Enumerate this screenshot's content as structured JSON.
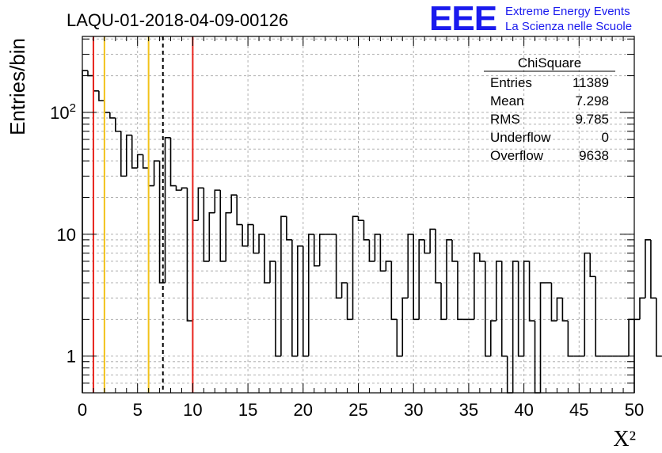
{
  "title": "LAQU-01-2018-04-09-00126",
  "logo": {
    "mark": "EEE",
    "line1": "Extreme Energy Events",
    "line2": "La Scienza nelle Scuole"
  },
  "stats": {
    "name": "ChiSquare",
    "rows": [
      {
        "label": "Entries",
        "value": "11389"
      },
      {
        "label": "Mean",
        "value": "7.298"
      },
      {
        "label": "RMS",
        "value": "9.785"
      },
      {
        "label": "Underflow",
        "value": "0"
      },
      {
        "label": "Overflow",
        "value": "9638"
      }
    ]
  },
  "colors": {
    "red_line": "#e8231c",
    "yellow_line": "#f2c21a",
    "dashed_line": "#000000",
    "logo": "#1a1aee"
  },
  "chart_data": {
    "type": "histogram",
    "title": "LAQU-01-2018-04-09-00126",
    "xlabel": "X²",
    "ylabel": "Entries/bin",
    "xlim": [
      0,
      50
    ],
    "ylim": [
      0.5,
      420
    ],
    "y_scale": "log",
    "grid": true,
    "bin_width": 0.5,
    "x_ticks": [
      0,
      5,
      10,
      15,
      20,
      25,
      30,
      35,
      40,
      45,
      50
    ],
    "x_tick_labels": [
      "0",
      "5",
      "10",
      "15",
      "20",
      "25",
      "30",
      "35",
      "40",
      "45",
      "50"
    ],
    "y_ticks": [
      1,
      10,
      100
    ],
    "y_tick_labels": [
      "1",
      "10",
      "10²"
    ],
    "values": [
      220,
      200,
      150,
      125,
      100,
      90,
      70,
      30,
      65,
      35,
      45,
      35,
      25,
      40,
      4,
      62,
      25,
      23,
      24,
      1.95,
      13,
      24,
      6,
      15,
      23,
      6,
      15,
      21,
      12,
      8,
      12,
      7,
      10,
      4,
      6,
      1,
      14,
      9,
      1,
      8,
      1,
      10,
      5.5,
      10,
      10,
      10,
      3,
      4,
      2,
      14,
      13,
      9,
      6,
      10,
      5,
      6,
      2,
      1,
      3,
      10,
      2,
      9,
      7,
      11,
      4,
      2,
      9,
      6,
      2,
      2,
      2,
      7,
      6,
      1,
      1.95,
      6,
      1,
      0.5,
      6,
      1,
      6,
      1.95,
      0.5,
      4,
      4,
      1.95,
      3,
      1.95,
      1,
      1,
      1,
      7,
      4.5,
      1,
      1,
      1,
      1,
      1,
      1,
      2,
      2,
      3,
      9,
      3,
      1,
      1,
      1,
      4,
      2,
      2.5,
      2,
      4,
      1,
      2,
      1,
      2,
      7,
      1,
      3,
      3,
      1,
      1,
      1,
      1.95,
      1,
      0.5,
      3,
      1.95,
      1.95,
      0.5,
      1,
      1,
      2,
      2,
      2,
      4,
      2,
      1,
      1.5,
      2,
      1,
      1,
      0.5,
      1.5,
      1,
      2,
      1,
      1,
      1,
      2
    ],
    "vertical_lines": [
      {
        "x": 1,
        "style": "solid",
        "color": "#e8231c"
      },
      {
        "x": 2,
        "style": "solid",
        "color": "#f2c21a"
      },
      {
        "x": 6,
        "style": "solid",
        "color": "#f2c21a"
      },
      {
        "x": 7.298,
        "style": "dashed",
        "color": "#000000"
      },
      {
        "x": 10,
        "style": "solid",
        "color": "#e8231c"
      }
    ]
  }
}
